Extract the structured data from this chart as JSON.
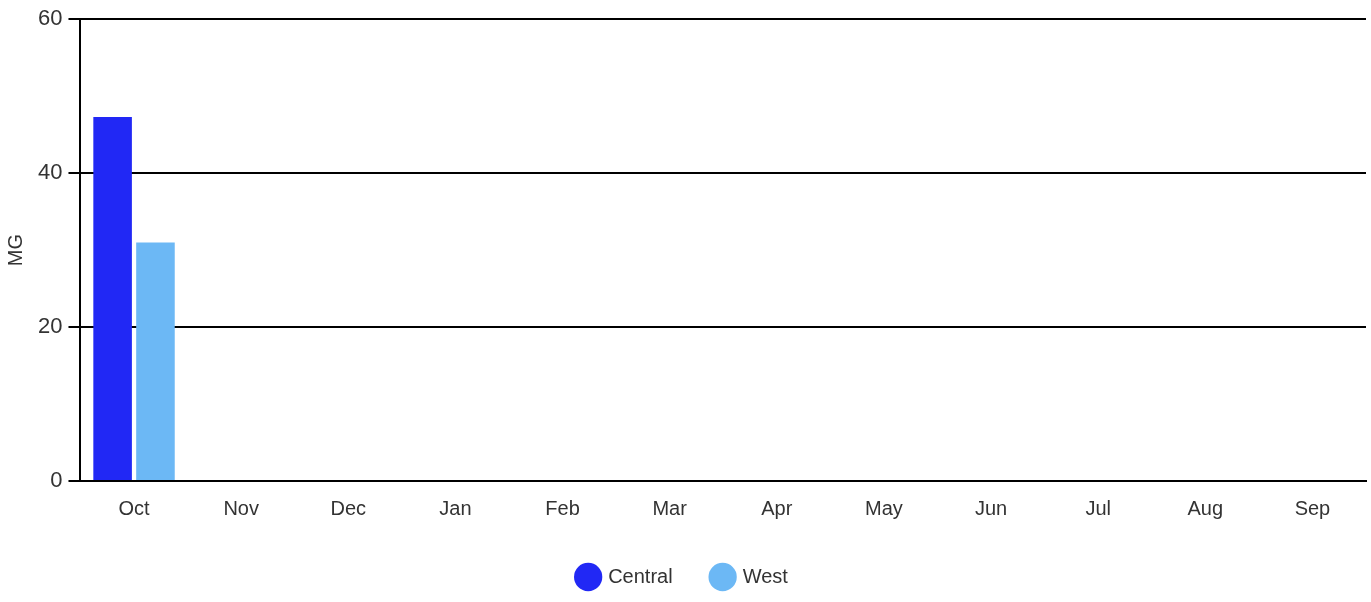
{
  "chart_data": {
    "type": "bar",
    "ylabel": "MG",
    "categories": [
      "Oct",
      "Nov",
      "Dec",
      "Jan",
      "Feb",
      "Mar",
      "Apr",
      "May",
      "Jun",
      "Jul",
      "Aug",
      "Sep"
    ],
    "series": [
      {
        "name": "Central",
        "color": "#2128f5",
        "values": [
          47.3,
          null,
          null,
          null,
          null,
          null,
          null,
          null,
          null,
          null,
          null,
          null
        ]
      },
      {
        "name": "West",
        "color": "#6cb8f5",
        "values": [
          31,
          null,
          null,
          null,
          null,
          null,
          null,
          null,
          null,
          null,
          null,
          null
        ]
      }
    ],
    "ylim": [
      0,
      60
    ],
    "yticks": [
      0,
      20,
      40,
      60
    ],
    "grid": "y",
    "legend": "bottom"
  }
}
